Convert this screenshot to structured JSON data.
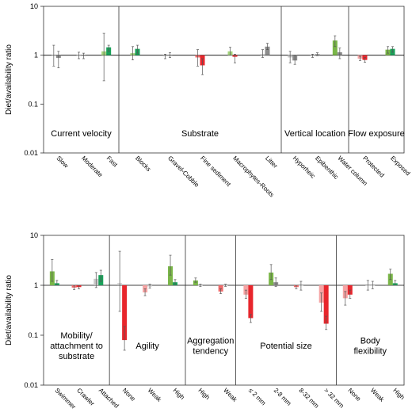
{
  "colors": {
    "grey": "#8c8c8c",
    "green": "#7ab648",
    "dark_green": "#1aa15a",
    "red": "#e8262c",
    "light_red": "#ef6b6b",
    "pink": "#f5a3a3",
    "light_green": "#a3d47b"
  },
  "chart_data": [
    {
      "type": "bar",
      "scale": "log",
      "ylabel": "Diet/availability ratio",
      "ylim": [
        0.01,
        10
      ],
      "ytick_labels": [
        "10",
        "1",
        "0.1",
        "0.01"
      ],
      "yticks": [
        10,
        1,
        0.1,
        0.01
      ],
      "reference_line": 1,
      "groups": [
        {
          "label": "Current velocity",
          "categories": [
            {
              "label": "Slow",
              "bars": [
                {
                  "value": 1.0,
                  "lo": 0.6,
                  "hi": 1.6,
                  "color": "#c8c8c8"
                },
                {
                  "value": 0.88,
                  "lo": 0.55,
                  "hi": 1.2,
                  "color": "#8c8c8c"
                }
              ]
            },
            {
              "label": "Moderate",
              "bars": [
                {
                  "value": 1.0,
                  "lo": 0.85,
                  "hi": 1.15,
                  "color": "#c8c8c8"
                },
                {
                  "value": 0.97,
                  "lo": 0.85,
                  "hi": 1.1,
                  "color": "#8c8c8c"
                }
              ]
            },
            {
              "label": "Fast",
              "bars": [
                {
                  "value": 1.2,
                  "lo": 0.3,
                  "hi": 2.8,
                  "color": "#a3d47b"
                },
                {
                  "value": 1.45,
                  "lo": 1.2,
                  "hi": 1.6,
                  "color": "#1aa15a"
                }
              ]
            }
          ]
        },
        {
          "label": "Substrate",
          "categories": [
            {
              "label": "Blocks",
              "bars": [
                {
                  "value": 1.1,
                  "lo": 0.8,
                  "hi": 1.5,
                  "color": "#a3d47b"
                },
                {
                  "value": 1.35,
                  "lo": 1.1,
                  "hi": 1.6,
                  "color": "#1aa15a"
                }
              ]
            },
            {
              "label": "Gravel-Cobble",
              "bars": [
                {
                  "value": 0.95,
                  "lo": 0.85,
                  "hi": 1.05,
                  "color": "#c8c8c8"
                },
                {
                  "value": 1.02,
                  "lo": 0.9,
                  "hi": 1.12,
                  "color": "#8c8c8c"
                }
              ]
            },
            {
              "label": "Fine sediment",
              "bars": [
                {
                  "value": 0.9,
                  "lo": 0.6,
                  "hi": 1.3,
                  "color": "#ef6b6b"
                },
                {
                  "value": 0.62,
                  "lo": 0.4,
                  "hi": 0.85,
                  "color": "#e8262c"
                }
              ]
            },
            {
              "label": "Macrophytes-Roots",
              "bars": [
                {
                  "value": 1.2,
                  "lo": 1.0,
                  "hi": 1.45,
                  "color": "#a3d47b"
                },
                {
                  "value": 0.93,
                  "lo": 0.7,
                  "hi": 1.05,
                  "color": "#e8262c"
                }
              ]
            },
            {
              "label": "Litter",
              "bars": [
                {
                  "value": 1.05,
                  "lo": 0.9,
                  "hi": 1.3,
                  "color": "#c8c8c8"
                },
                {
                  "value": 1.5,
                  "lo": 1.3,
                  "hi": 1.75,
                  "color": "#8c8c8c"
                }
              ]
            }
          ]
        },
        {
          "label": "Vertical location",
          "categories": [
            {
              "label": "Hyporheic",
              "bars": [
                {
                  "value": 0.9,
                  "lo": 0.7,
                  "hi": 1.2,
                  "color": "#c8c8c8"
                },
                {
                  "value": 0.78,
                  "lo": 0.65,
                  "hi": 1.0,
                  "color": "#8c8c8c"
                }
              ]
            },
            {
              "label": "Epibenthic",
              "bars": [
                {
                  "value": 0.97,
                  "lo": 0.9,
                  "hi": 1.05,
                  "color": "#c8c8c8"
                },
                {
                  "value": 1.05,
                  "lo": 0.98,
                  "hi": 1.12,
                  "color": "#8c8c8c"
                }
              ]
            },
            {
              "label": "Water column",
              "bars": [
                {
                  "value": 2.0,
                  "lo": 1.5,
                  "hi": 2.5,
                  "color": "#7ab648"
                },
                {
                  "value": 1.15,
                  "lo": 0.85,
                  "hi": 1.4,
                  "color": "#8c8c8c"
                }
              ]
            }
          ]
        },
        {
          "label": "Flow exposure",
          "categories": [
            {
              "label": "Protected",
              "bars": [
                {
                  "value": 0.85,
                  "lo": 0.78,
                  "hi": 0.95,
                  "color": "#f5a3a3"
                },
                {
                  "value": 0.8,
                  "lo": 0.72,
                  "hi": 0.9,
                  "color": "#e8262c"
                }
              ]
            },
            {
              "label": "Exposed",
              "bars": [
                {
                  "value": 1.3,
                  "lo": 1.1,
                  "hi": 1.5,
                  "color": "#7ab648"
                },
                {
                  "value": 1.35,
                  "lo": 1.15,
                  "hi": 1.5,
                  "color": "#1aa15a"
                }
              ]
            }
          ]
        }
      ]
    },
    {
      "type": "bar",
      "scale": "log",
      "ylabel": "Diet/availability ratio",
      "ylim": [
        0.01,
        10
      ],
      "ytick_labels": [
        "10",
        "1",
        "0.1",
        "0.01"
      ],
      "yticks": [
        10,
        1,
        0.1,
        0.01
      ],
      "reference_line": 1,
      "groups": [
        {
          "label": "Mobility/ attachment to substrate",
          "label_lines": [
            "Mobility/",
            "attachment to",
            "substrate"
          ],
          "categories": [
            {
              "label": "Swimmer",
              "bars": [
                {
                  "value": 1.9,
                  "lo": 1.2,
                  "hi": 3.3,
                  "color": "#7ab648"
                },
                {
                  "value": 1.1,
                  "lo": 1.0,
                  "hi": 1.25,
                  "color": "#1aa15a"
                }
              ]
            },
            {
              "label": "Crawler",
              "bars": [
                {
                  "value": 0.9,
                  "lo": 0.82,
                  "hi": 1.0,
                  "color": "#ef6b6b"
                },
                {
                  "value": 0.92,
                  "lo": 0.85,
                  "hi": 1.0,
                  "color": "#e8262c"
                }
              ]
            },
            {
              "label": "Attached",
              "bars": [
                {
                  "value": 1.35,
                  "lo": 0.9,
                  "hi": 1.8,
                  "color": "#c8c8c8"
                },
                {
                  "value": 1.6,
                  "lo": 1.2,
                  "hi": 2.0,
                  "color": "#1aa15a"
                }
              ]
            }
          ]
        },
        {
          "label": "Agility",
          "categories": [
            {
              "label": "None",
              "bars": [
                {
                  "value": 1.1,
                  "lo": 0.3,
                  "hi": 4.8,
                  "color": "#c8c8c8"
                },
                {
                  "value": 0.08,
                  "lo": 0.05,
                  "hi": 0.15,
                  "color": "#e8262c"
                }
              ]
            },
            {
              "label": "Weak",
              "bars": [
                {
                  "value": 0.72,
                  "lo": 0.62,
                  "hi": 0.85,
                  "color": "#f5a3a3"
                },
                {
                  "value": 0.95,
                  "lo": 0.88,
                  "hi": 1.05,
                  "color": "#c8c8c8"
                }
              ]
            },
            {
              "label": "High",
              "bars": [
                {
                  "value": 2.4,
                  "lo": 1.6,
                  "hi": 4.0,
                  "color": "#7ab648"
                },
                {
                  "value": 1.15,
                  "lo": 1.05,
                  "hi": 1.3,
                  "color": "#1aa15a"
                }
              ]
            }
          ]
        },
        {
          "label": "Aggregation tendency",
          "label_lines": [
            "Aggregation",
            "tendency"
          ],
          "categories": [
            {
              "label": "High",
              "bars": [
                {
                  "value": 1.25,
                  "lo": 1.15,
                  "hi": 1.4,
                  "color": "#7ab648"
                },
                {
                  "value": 1.0,
                  "lo": 0.95,
                  "hi": 1.05,
                  "color": "#c8c8c8"
                }
              ]
            },
            {
              "label": "Weak",
              "bars": [
                {
                  "value": 0.75,
                  "lo": 0.68,
                  "hi": 0.85,
                  "color": "#ef6b6b"
                },
                {
                  "value": 1.0,
                  "lo": 0.95,
                  "hi": 1.05,
                  "color": "#c8c8c8"
                }
              ]
            }
          ]
        },
        {
          "label": "Potential size",
          "categories": [
            {
              "label": "≤ 2 mm",
              "bars": [
                {
                  "value": 0.65,
                  "lo": 0.55,
                  "hi": 0.8,
                  "color": "#f5a3a3"
                },
                {
                  "value": 0.22,
                  "lo": 0.18,
                  "hi": 0.26,
                  "color": "#e8262c"
                }
              ]
            },
            {
              "label": "2-8 mm",
              "bars": [
                {
                  "value": 1.8,
                  "lo": 1.3,
                  "hi": 2.6,
                  "color": "#7ab648"
                },
                {
                  "value": 1.15,
                  "lo": 0.95,
                  "hi": 1.4,
                  "color": "#8c8c8c"
                }
              ]
            },
            {
              "label": "8-32 mm",
              "bars": [
                {
                  "value": 0.92,
                  "lo": 0.85,
                  "hi": 1.0,
                  "color": "#ef6b6b"
                },
                {
                  "value": 1.0,
                  "lo": 0.8,
                  "hi": 1.2,
                  "color": "#c8c8c8"
                }
              ]
            },
            {
              "label": "> 32 mm",
              "bars": [
                {
                  "value": 0.45,
                  "lo": 0.3,
                  "hi": 0.7,
                  "color": "#f5a3a3"
                },
                {
                  "value": 0.17,
                  "lo": 0.13,
                  "hi": 0.24,
                  "color": "#e8262c"
                }
              ]
            }
          ]
        },
        {
          "label": "Body flexibility",
          "label_lines": [
            "Body",
            "flexibility"
          ],
          "categories": [
            {
              "label": "None",
              "bars": [
                {
                  "value": 0.55,
                  "lo": 0.4,
                  "hi": 0.75,
                  "color": "#f5a3a3"
                },
                {
                  "value": 0.65,
                  "lo": 0.55,
                  "hi": 0.8,
                  "color": "#e8262c"
                }
              ]
            },
            {
              "label": "Weak",
              "bars": [
                {
                  "value": 1.0,
                  "lo": 0.8,
                  "hi": 1.25,
                  "color": "#c8c8c8"
                },
                {
                  "value": 1.0,
                  "lo": 0.85,
                  "hi": 1.2,
                  "color": "#c8c8c8"
                }
              ]
            },
            {
              "label": "High",
              "bars": [
                {
                  "value": 1.7,
                  "lo": 1.3,
                  "hi": 2.1,
                  "color": "#7ab648"
                },
                {
                  "value": 1.1,
                  "lo": 1.0,
                  "hi": 1.25,
                  "color": "#1aa15a"
                }
              ]
            }
          ]
        }
      ]
    }
  ]
}
